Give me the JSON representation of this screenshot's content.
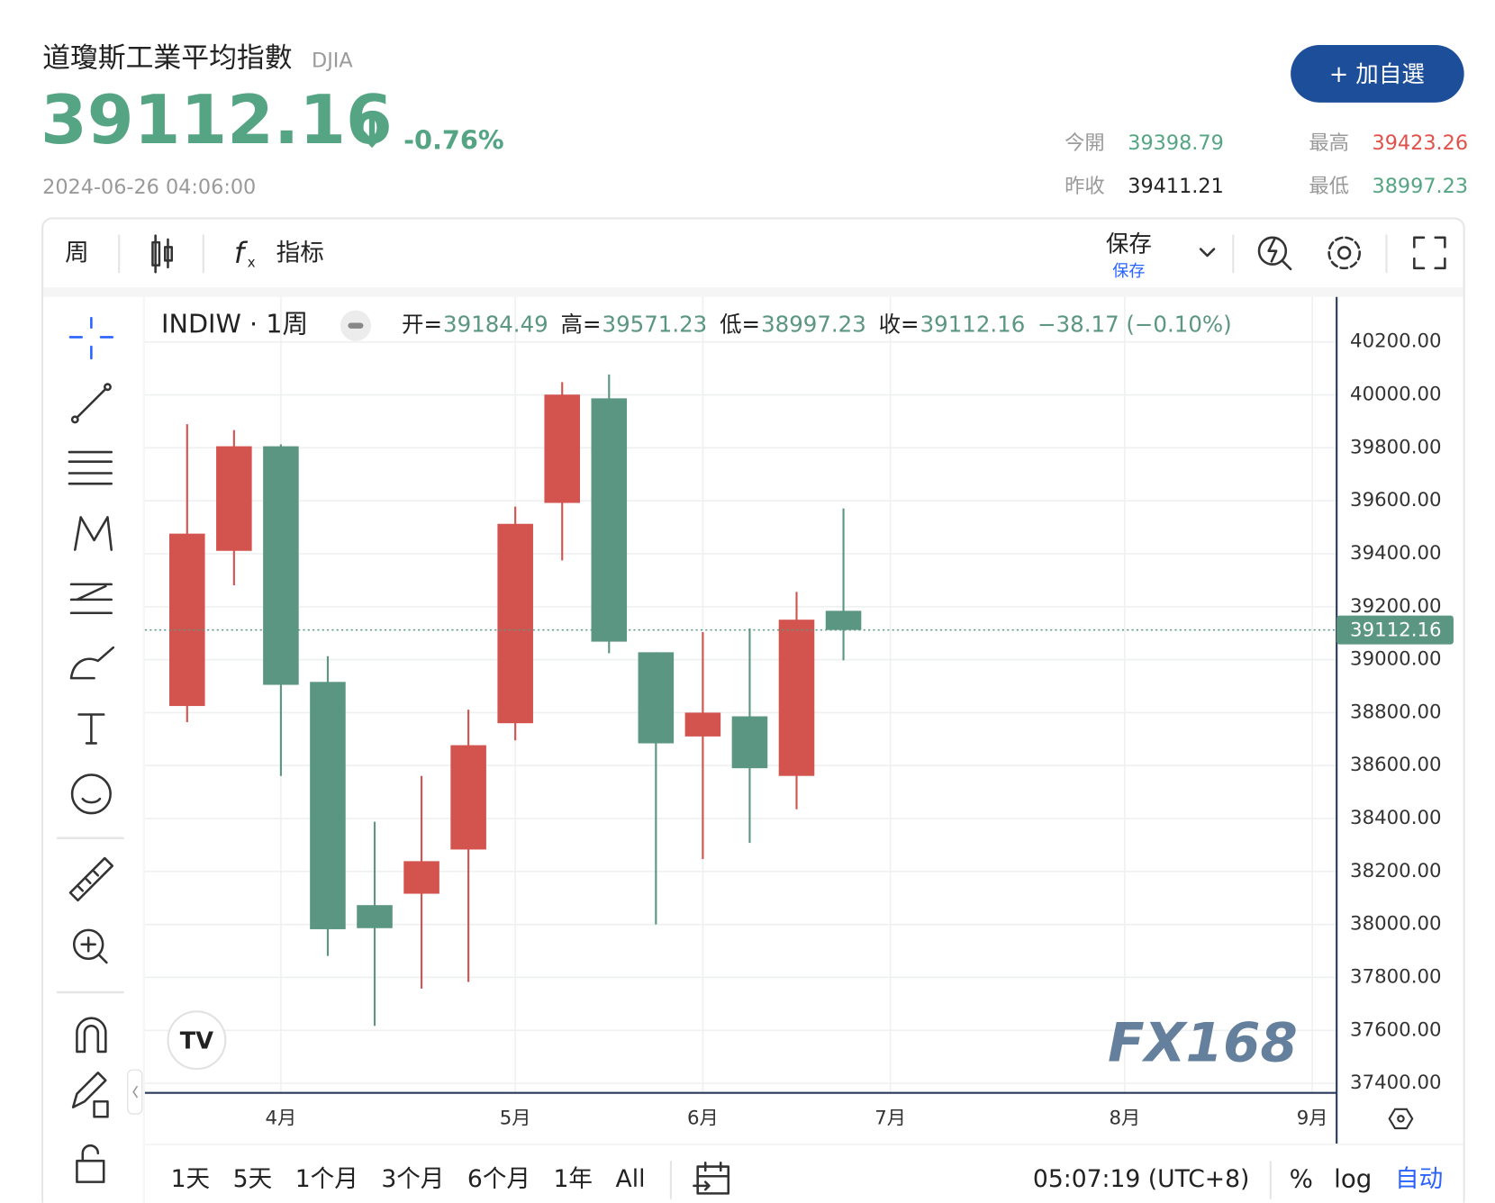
{
  "header": {
    "name": "道瓊斯工業平均指數",
    "symbol": "DJIA",
    "price": "39112.16",
    "change": "-0.76%",
    "time": "2024-06-26 04:06:00",
    "button": "+ 加自選",
    "stats": [
      {
        "label": "今開",
        "value": "39398.79"
      },
      {
        "label": "最高",
        "value": "39423.26"
      },
      {
        "label": "昨收",
        "value": "39411.21"
      },
      {
        "label": "最低",
        "value": "38997.23"
      }
    ]
  },
  "toolbar": {
    "interval": "周",
    "indicators": "指标",
    "save": "保存",
    "save_sub": "保存"
  },
  "chart_data": {
    "type": "candlestick",
    "symbol": "INDIW · 1周",
    "legend_labels": [
      "开=",
      "高=",
      "低=",
      "收="
    ],
    "change": "−38.17 (−0.10%)",
    "x": [
      0,
      1,
      2,
      3,
      4,
      5,
      6,
      7,
      8,
      9,
      10,
      11,
      12,
      13,
      14
    ],
    "open": [
      38825,
      39411,
      39806,
      38916,
      38073,
      38116,
      38283,
      38760,
      39592,
      39987,
      39028,
      38710,
      38786,
      38561,
      39184.49
    ],
    "high": [
      39889,
      39867,
      39813,
      39013,
      38388,
      38561,
      38811,
      39578,
      40048,
      40077,
      39028,
      39104,
      39118,
      39256,
      39571.23
    ],
    "low": [
      38764,
      39281,
      38561,
      37881,
      37617,
      37758,
      37783,
      38695,
      39375,
      39024,
      38000,
      38247,
      38308,
      38435,
      38997.23
    ],
    "close": [
      39476,
      39806,
      38905,
      37982,
      37986,
      38239,
      38677,
      39513,
      40001,
      39068,
      38684,
      38800,
      38590,
      39151,
      39112.16
    ],
    "up_color": "#d3534f",
    "down_color": "#5b9682",
    "xlim": [
      -0.9,
      24.52
    ],
    "xticks": [
      {
        "value": 2,
        "label": "4月"
      },
      {
        "value": 7,
        "label": "5月"
      },
      {
        "value": 11,
        "label": "6月"
      },
      {
        "value": 15,
        "label": "7月"
      },
      {
        "value": 20,
        "label": "8月"
      },
      {
        "value": 24,
        "label": "9月"
      }
    ],
    "ylim": [
      37364,
      40370
    ],
    "yticks": [
      {
        "value": 37400,
        "label": "37400.00"
      },
      {
        "value": 37600,
        "label": "37600.00"
      },
      {
        "value": 37800,
        "label": "37800.00"
      },
      {
        "value": 38000,
        "label": "38000.00"
      },
      {
        "value": 38200,
        "label": "38200.00"
      },
      {
        "value": 38400,
        "label": "38400.00"
      },
      {
        "value": 38600,
        "label": "38600.00"
      },
      {
        "value": 38800,
        "label": "38800.00"
      },
      {
        "value": 39000,
        "label": "39000.00"
      },
      {
        "value": 39200,
        "label": "39200.00"
      },
      {
        "value": 39400,
        "label": "39400.00"
      },
      {
        "value": 39600,
        "label": "39600.00"
      },
      {
        "value": 39800,
        "label": "39800.00"
      },
      {
        "value": 40000,
        "label": "40000.00"
      },
      {
        "value": 40200,
        "label": "40200.00"
      }
    ],
    "grid": true
  },
  "footer": {
    "ranges": [
      "1天",
      "5天",
      "1个月",
      "3个月",
      "6个月",
      "1年",
      "All"
    ],
    "clock": "05:07:19 (UTC+8)",
    "percent": "%",
    "log": "log",
    "auto": "自动"
  },
  "watermark": "FX168"
}
